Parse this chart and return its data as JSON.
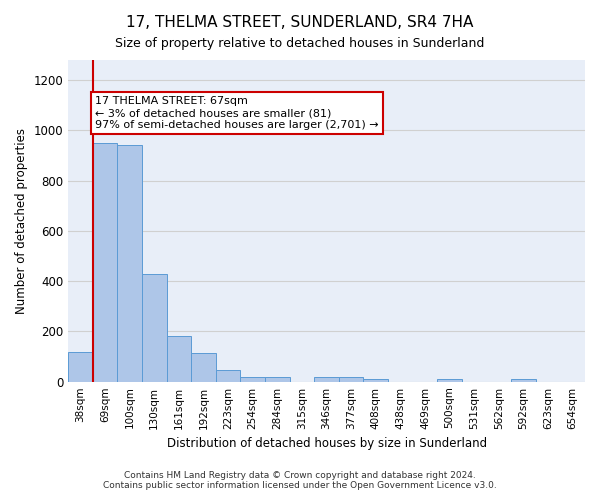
{
  "title": "17, THELMA STREET, SUNDERLAND, SR4 7HA",
  "subtitle": "Size of property relative to detached houses in Sunderland",
  "xlabel": "Distribution of detached houses by size in Sunderland",
  "ylabel": "Number of detached properties",
  "categories": [
    "38sqm",
    "69sqm",
    "100sqm",
    "130sqm",
    "161sqm",
    "192sqm",
    "223sqm",
    "254sqm",
    "284sqm",
    "315sqm",
    "346sqm",
    "377sqm",
    "408sqm",
    "438sqm",
    "469sqm",
    "500sqm",
    "531sqm",
    "562sqm",
    "592sqm",
    "623sqm",
    "654sqm"
  ],
  "values": [
    120,
    950,
    940,
    430,
    180,
    115,
    45,
    20,
    20,
    0,
    20,
    20,
    10,
    0,
    0,
    10,
    0,
    0,
    10,
    0,
    0
  ],
  "bar_color": "#aec6e8",
  "bar_edge_color": "#5b9bd5",
  "annotation_text_line1": "17 THELMA STREET: 67sqm",
  "annotation_text_line2": "← 3% of detached houses are smaller (81)",
  "annotation_text_line3": "97% of semi-detached houses are larger (2,701) →",
  "annotation_box_color": "#ffffff",
  "annotation_box_edge": "#cc0000",
  "marker_line_color": "#cc0000",
  "ylim": [
    0,
    1280
  ],
  "yticks": [
    0,
    200,
    400,
    600,
    800,
    1000,
    1200
  ],
  "grid_color": "#d0d0d0",
  "bg_color": "#e8eef8",
  "footnote1": "Contains HM Land Registry data © Crown copyright and database right 2024.",
  "footnote2": "Contains public sector information licensed under the Open Government Licence v3.0."
}
